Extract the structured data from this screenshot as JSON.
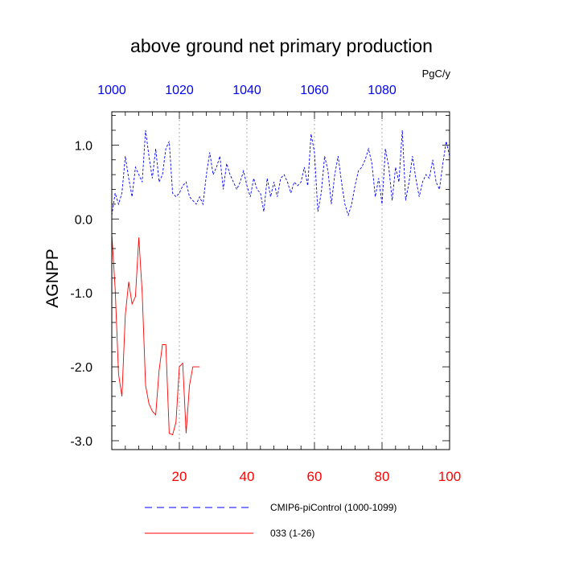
{
  "chart_data": {
    "type": "line",
    "title": "above ground net primary production",
    "units": "PgC/y",
    "ylabel": "AGNPP",
    "xlabel": "",
    "xlim": [
      0,
      100
    ],
    "ylim": [
      -3.12,
      1.45
    ],
    "grid": "vertical dotted lines at x ticks",
    "x_bottom_ticks": [
      20,
      40,
      60,
      80,
      100
    ],
    "x_bottom_tick_labels": [
      "20",
      "40",
      "60",
      "80",
      "100"
    ],
    "x_top_ticks": [
      0,
      20,
      40,
      60,
      80
    ],
    "x_top_tick_labels": [
      "1000",
      "1020",
      "1040",
      "1060",
      "1080"
    ],
    "y_ticks": [
      1.0,
      0.0,
      -1.0,
      -2.0,
      -3.0
    ],
    "y_tick_labels": [
      "1.0",
      "0.0",
      "-1.0",
      "-2.0",
      "-3.0"
    ],
    "legend_position": "bottom",
    "series": [
      {
        "name": "CMIP6-piControl (1000-1099)",
        "color": "#0000ff",
        "style": "dashed",
        "x": [
          0,
          1,
          2,
          3,
          4,
          5,
          6,
          7,
          8,
          9,
          10,
          11,
          12,
          13,
          14,
          15,
          16,
          17,
          18,
          19,
          20,
          21,
          22,
          23,
          24,
          25,
          26,
          27,
          28,
          29,
          30,
          31,
          32,
          33,
          34,
          35,
          36,
          37,
          38,
          39,
          40,
          41,
          42,
          43,
          44,
          45,
          46,
          47,
          48,
          49,
          50,
          51,
          52,
          53,
          54,
          55,
          56,
          57,
          58,
          59,
          60,
          61,
          62,
          63,
          64,
          65,
          66,
          67,
          68,
          69,
          70,
          71,
          72,
          73,
          74,
          75,
          76,
          77,
          78,
          79,
          80,
          81,
          82,
          83,
          84,
          85,
          86,
          87,
          88,
          89,
          90,
          91,
          92,
          93,
          94,
          95,
          96,
          97,
          98,
          99,
          100
        ],
        "values": [
          0.05,
          0.35,
          0.2,
          0.35,
          0.85,
          0.55,
          0.3,
          0.7,
          0.6,
          0.5,
          1.2,
          0.85,
          0.55,
          0.95,
          0.5,
          0.6,
          0.95,
          1.05,
          0.35,
          0.3,
          0.35,
          0.45,
          0.5,
          0.3,
          0.25,
          0.2,
          0.3,
          0.2,
          0.6,
          0.9,
          0.6,
          0.7,
          0.85,
          0.4,
          0.75,
          0.6,
          0.5,
          0.4,
          0.5,
          0.65,
          0.45,
          0.3,
          0.55,
          0.4,
          0.35,
          0.1,
          0.55,
          0.3,
          0.5,
          0.3,
          0.55,
          0.6,
          0.5,
          0.35,
          0.5,
          0.45,
          0.5,
          0.7,
          0.45,
          1.15,
          0.9,
          0.1,
          0.35,
          0.85,
          0.65,
          0.2,
          0.6,
          0.85,
          0.5,
          0.2,
          0.05,
          0.2,
          0.45,
          0.65,
          0.7,
          0.8,
          0.95,
          0.75,
          0.3,
          0.55,
          0.2,
          0.95,
          0.7,
          0.25,
          0.7,
          0.5,
          1.2,
          0.25,
          0.5,
          0.85,
          0.55,
          0.3,
          0.5,
          0.6,
          0.55,
          0.8,
          0.5,
          0.4,
          0.75,
          1.05,
          0.85
        ]
      },
      {
        "name": "033 (1-26)",
        "color": "#ff0000",
        "style": "solid",
        "x": [
          0,
          1,
          2,
          3,
          4,
          5,
          6,
          7,
          8,
          9,
          10,
          11,
          12,
          13,
          14,
          15,
          16,
          17,
          18,
          19,
          20,
          21,
          22,
          23,
          24,
          25,
          26
        ],
        "values": [
          -0.2,
          -0.95,
          -2.1,
          -2.4,
          -1.3,
          -0.85,
          -1.15,
          -1.05,
          -0.25,
          -1.0,
          -2.25,
          -2.5,
          -2.6,
          -2.65,
          -2.05,
          -1.7,
          -1.7,
          -2.9,
          -2.92,
          -2.75,
          -2.0,
          -1.95,
          -2.9,
          -2.25,
          -2.0,
          -2.0,
          -2.0
        ]
      }
    ]
  }
}
